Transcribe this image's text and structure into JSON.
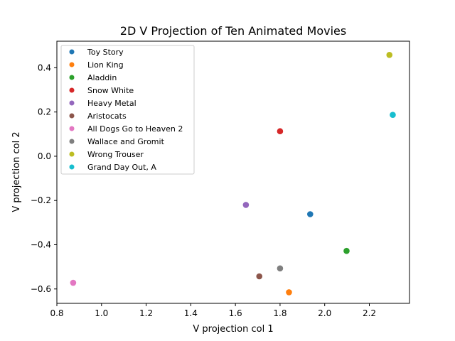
{
  "chart_data": {
    "type": "scatter",
    "title": "2D V Projection of Ten Animated Movies",
    "xlabel": "V projection col 1",
    "ylabel": "V projection col 2",
    "xlim": [
      0.8,
      2.38
    ],
    "ylim": [
      -0.665,
      0.52
    ],
    "x_ticks": [
      "0.8",
      "1.0",
      "1.2",
      "1.4",
      "1.6",
      "1.8",
      "2.0",
      "2.2"
    ],
    "y_ticks": [
      "-0.6",
      "-0.4",
      "-0.2",
      "0.0",
      "0.2",
      "0.4"
    ],
    "grid": false,
    "legend_position": "upper-left",
    "series": [
      {
        "name": "Toy Story",
        "x": [
          1.935
        ],
        "y": [
          -0.262
        ],
        "color": "#1f77b4"
      },
      {
        "name": "Lion King",
        "x": [
          1.84
        ],
        "y": [
          -0.615
        ],
        "color": "#ff7f0e"
      },
      {
        "name": "Aladdin",
        "x": [
          2.098
        ],
        "y": [
          -0.428
        ],
        "color": "#2ca02c"
      },
      {
        "name": "Snow White",
        "x": [
          1.8
        ],
        "y": [
          0.113
        ],
        "color": "#d62728"
      },
      {
        "name": "Heavy Metal",
        "x": [
          1.647
        ],
        "y": [
          -0.22
        ],
        "color": "#9467bd"
      },
      {
        "name": "Aristocats",
        "x": [
          1.707
        ],
        "y": [
          -0.543
        ],
        "color": "#8c564b"
      },
      {
        "name": "All Dogs Go to Heaven 2",
        "x": [
          0.873
        ],
        "y": [
          -0.572
        ],
        "color": "#e377c2"
      },
      {
        "name": "Wallace and Gromit",
        "x": [
          1.8
        ],
        "y": [
          -0.507
        ],
        "color": "#7f7f7f"
      },
      {
        "name": "Wrong Trouser",
        "x": [
          2.29
        ],
        "y": [
          0.458
        ],
        "color": "#bcbd22"
      },
      {
        "name": "Grand Day Out, A",
        "x": [
          2.305
        ],
        "y": [
          0.187
        ],
        "color": "#17becf"
      }
    ]
  }
}
